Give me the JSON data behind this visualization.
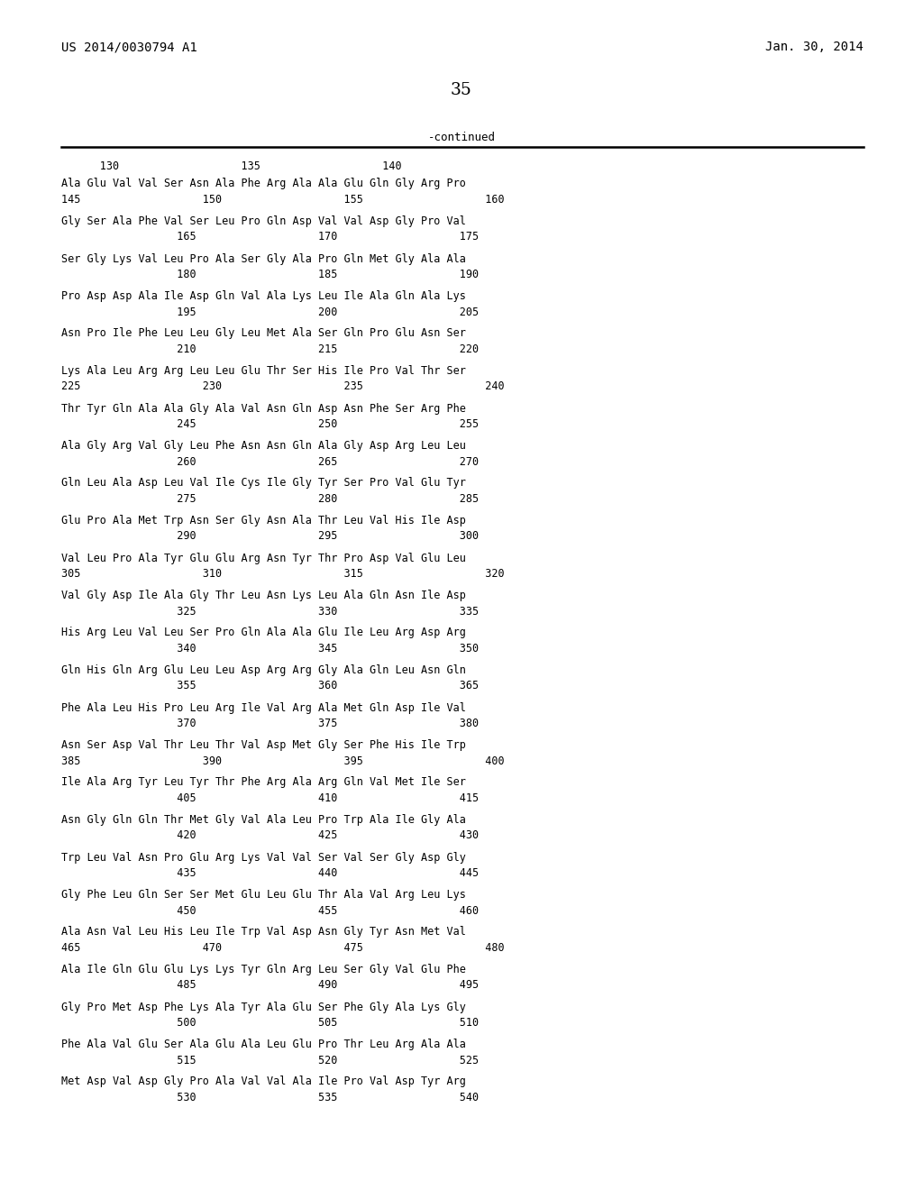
{
  "header_left": "US 2014/0030794 A1",
  "header_right": "Jan. 30, 2014",
  "page_number": "35",
  "continued_label": "-continued",
  "ruler": "      130                   135                   140",
  "sequence_blocks": [
    {
      "seq": "Ala Glu Val Val Ser Asn Ala Phe Arg Ala Ala Glu Gln Gly Arg Pro",
      "num": "145                   150                   155                   160"
    },
    {
      "seq": "Gly Ser Ala Phe Val Ser Leu Pro Gln Asp Val Val Asp Gly Pro Val",
      "num": "                  165                   170                   175"
    },
    {
      "seq": "Ser Gly Lys Val Leu Pro Ala Ser Gly Ala Pro Gln Met Gly Ala Ala",
      "num": "                  180                   185                   190"
    },
    {
      "seq": "Pro Asp Asp Ala Ile Asp Gln Val Ala Lys Leu Ile Ala Gln Ala Lys",
      "num": "                  195                   200                   205"
    },
    {
      "seq": "Asn Pro Ile Phe Leu Leu Gly Leu Met Ala Ser Gln Pro Glu Asn Ser",
      "num": "                  210                   215                   220"
    },
    {
      "seq": "Lys Ala Leu Arg Arg Leu Leu Glu Thr Ser His Ile Pro Val Thr Ser",
      "num": "225                   230                   235                   240"
    },
    {
      "seq": "Thr Tyr Gln Ala Ala Gly Ala Val Asn Gln Asp Asn Phe Ser Arg Phe",
      "num": "                  245                   250                   255"
    },
    {
      "seq": "Ala Gly Arg Val Gly Leu Phe Asn Asn Gln Ala Gly Asp Arg Leu Leu",
      "num": "                  260                   265                   270"
    },
    {
      "seq": "Gln Leu Ala Asp Leu Val Ile Cys Ile Gly Tyr Ser Pro Val Glu Tyr",
      "num": "                  275                   280                   285"
    },
    {
      "seq": "Glu Pro Ala Met Trp Asn Ser Gly Asn Ala Thr Leu Val His Ile Asp",
      "num": "                  290                   295                   300"
    },
    {
      "seq": "Val Leu Pro Ala Tyr Glu Glu Arg Asn Tyr Thr Pro Asp Val Glu Leu",
      "num": "305                   310                   315                   320"
    },
    {
      "seq": "Val Gly Asp Ile Ala Gly Thr Leu Asn Lys Leu Ala Gln Asn Ile Asp",
      "num": "                  325                   330                   335"
    },
    {
      "seq": "His Arg Leu Val Leu Ser Pro Gln Ala Ala Glu Ile Leu Arg Asp Arg",
      "num": "                  340                   345                   350"
    },
    {
      "seq": "Gln His Gln Arg Glu Leu Leu Asp Arg Arg Gly Ala Gln Leu Asn Gln",
      "num": "                  355                   360                   365"
    },
    {
      "seq": "Phe Ala Leu His Pro Leu Arg Ile Val Arg Ala Met Gln Asp Ile Val",
      "num": "                  370                   375                   380"
    },
    {
      "seq": "Asn Ser Asp Val Thr Leu Thr Val Asp Met Gly Ser Phe His Ile Trp",
      "num": "385                   390                   395                   400"
    },
    {
      "seq": "Ile Ala Arg Tyr Leu Tyr Thr Phe Arg Ala Arg Gln Val Met Ile Ser",
      "num": "                  405                   410                   415"
    },
    {
      "seq": "Asn Gly Gln Gln Thr Met Gly Val Ala Leu Pro Trp Ala Ile Gly Ala",
      "num": "                  420                   425                   430"
    },
    {
      "seq": "Trp Leu Val Asn Pro Glu Arg Lys Val Val Ser Val Ser Gly Asp Gly",
      "num": "                  435                   440                   445"
    },
    {
      "seq": "Gly Phe Leu Gln Ser Ser Met Glu Leu Glu Thr Ala Val Arg Leu Lys",
      "num": "                  450                   455                   460"
    },
    {
      "seq": "Ala Asn Val Leu His Leu Ile Trp Val Asp Asn Gly Tyr Asn Met Val",
      "num": "465                   470                   475                   480"
    },
    {
      "seq": "Ala Ile Gln Glu Glu Lys Lys Tyr Gln Arg Leu Ser Gly Val Glu Phe",
      "num": "                  485                   490                   495"
    },
    {
      "seq": "Gly Pro Met Asp Phe Lys Ala Tyr Ala Glu Ser Phe Gly Ala Lys Gly",
      "num": "                  500                   505                   510"
    },
    {
      "seq": "Phe Ala Val Glu Ser Ala Glu Ala Leu Glu Pro Thr Leu Arg Ala Ala",
      "num": "                  515                   520                   525"
    },
    {
      "seq": "Met Asp Val Asp Gly Pro Ala Val Val Ala Ile Pro Val Asp Tyr Arg",
      "num": "                  530                   535                   540"
    }
  ]
}
